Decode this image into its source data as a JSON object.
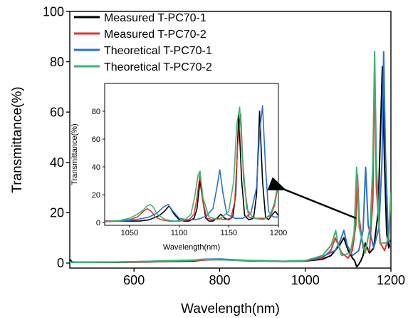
{
  "chart_data": [
    {
      "type": "line",
      "panel": "main",
      "xlabel": "Wavelength(nm)",
      "ylabel": "Transmittance(%)",
      "xlim": [
        450,
        1200
      ],
      "ylim": [
        -2,
        100
      ],
      "x_ticks": [
        600,
        800,
        1000,
        1200
      ],
      "y_ticks": [
        0,
        20,
        40,
        60,
        80,
        100
      ],
      "legend_position": "top-left",
      "colors": {
        "Measured T-PC70-1": "#000000",
        "Measured T-PC70-2": "#e8312a",
        "Theoretical T-PC70-1": "#2a6fd4",
        "Theoretical T-PC70-2": "#3cb371"
      },
      "series": [
        {
          "name": "Measured T-PC70-1",
          "x": [
            450,
            455,
            460,
            500,
            560,
            620,
            680,
            740,
            760,
            800,
            860,
            900,
            950,
            1000,
            1040,
            1060,
            1080,
            1090,
            1100,
            1110,
            1115,
            1120,
            1125,
            1130,
            1135,
            1140,
            1150,
            1160,
            1170,
            1180,
            1185,
            1190,
            1195,
            1200
          ],
          "y": [
            1.5,
            0.5,
            0.3,
            0.3,
            0.3,
            0.4,
            0.6,
            0.8,
            1.2,
            1.5,
            0.9,
            0.8,
            0.6,
            0.8,
            1.5,
            3,
            7,
            10,
            5,
            2,
            1,
            -1.5,
            -0.5,
            1,
            3,
            8,
            4,
            6,
            20,
            78,
            40,
            12,
            6,
            9
          ]
        },
        {
          "name": "Measured T-PC70-2",
          "x": [
            450,
            460,
            500,
            560,
            620,
            680,
            740,
            760,
            800,
            860,
            900,
            950,
            1000,
            1040,
            1060,
            1070,
            1075,
            1085,
            1100,
            1110,
            1118,
            1122,
            1126,
            1135,
            1150,
            1158,
            1162,
            1166,
            1175,
            1185,
            1195,
            1200
          ],
          "y": [
            0.5,
            0.3,
            0.3,
            0.4,
            0.5,
            0.7,
            1.0,
            1.2,
            1.4,
            1.0,
            0.9,
            0.7,
            0.9,
            2,
            5,
            10,
            8,
            4,
            2,
            5,
            15,
            35,
            18,
            6,
            5,
            25,
            78,
            30,
            8,
            5,
            10,
            28
          ]
        },
        {
          "name": "Theoretical T-PC70-1",
          "x": [
            450,
            460,
            500,
            560,
            620,
            680,
            740,
            760,
            800,
            860,
            900,
            950,
            1000,
            1040,
            1070,
            1082,
            1090,
            1098,
            1110,
            1125,
            1135,
            1141,
            1147,
            1160,
            1172,
            1179,
            1183,
            1187,
            1194,
            1200
          ],
          "y": [
            0.3,
            0.3,
            0.3,
            0.4,
            0.6,
            0.9,
            1.2,
            1.5,
            1.6,
            1.1,
            0.9,
            0.7,
            1.0,
            2.5,
            5,
            9,
            13,
            7,
            3,
            5,
            13,
            38,
            15,
            6,
            14,
            40,
            84,
            45,
            10,
            7
          ]
        },
        {
          "name": "Theoretical T-PC70-2",
          "x": [
            450,
            460,
            500,
            560,
            620,
            680,
            740,
            760,
            800,
            860,
            900,
            950,
            1000,
            1040,
            1060,
            1066,
            1071,
            1076,
            1085,
            1105,
            1114,
            1120,
            1126,
            1140,
            1152,
            1158,
            1162,
            1166,
            1174,
            1190,
            1196,
            1200
          ],
          "y": [
            0.3,
            0.3,
            0.3,
            0.4,
            0.6,
            0.9,
            1.2,
            1.4,
            1.3,
            1.0,
            0.9,
            0.7,
            1.0,
            3,
            7,
            10,
            13,
            8,
            3,
            4,
            12,
            38,
            14,
            4,
            15,
            40,
            84,
            40,
            8,
            8,
            12,
            28
          ]
        }
      ]
    },
    {
      "type": "line",
      "panel": "inset",
      "xlabel": "Wavelength(nm)",
      "ylabel": "Transmittance(%)",
      "xlim": [
        1025,
        1200
      ],
      "ylim": [
        -2,
        100
      ],
      "x_ticks": [
        1050,
        1100,
        1150,
        1200
      ],
      "y_ticks": [
        0,
        20,
        40,
        60,
        80
      ],
      "colors": {
        "Measured T-PC70-1": "#000000",
        "Measured T-PC70-2": "#e8312a",
        "Theoretical T-PC70-1": "#2a6fd4",
        "Theoretical T-PC70-2": "#3cb371"
      },
      "series": [
        {
          "name": "Measured T-PC70-1",
          "x": [
            1025,
            1040,
            1050,
            1060,
            1070,
            1080,
            1085,
            1090,
            1095,
            1100,
            1105,
            1110,
            1115,
            1118,
            1121,
            1124,
            1127,
            1130,
            1134,
            1138,
            1142,
            1146,
            1150,
            1154,
            1157,
            1160,
            1163,
            1166,
            1170,
            1175,
            1178,
            1181,
            1184,
            1187,
            1190,
            1194,
            1197,
            1200
          ],
          "y": [
            1,
            1,
            1,
            1,
            2,
            5,
            8,
            12,
            6,
            2,
            1,
            1,
            3,
            10,
            30,
            15,
            3,
            1,
            1,
            3,
            6,
            3,
            2,
            4,
            20,
            78,
            30,
            5,
            2,
            3,
            20,
            80,
            30,
            4,
            2,
            6,
            8,
            5
          ]
        },
        {
          "name": "Measured T-PC70-2",
          "x": [
            1025,
            1040,
            1050,
            1058,
            1064,
            1068,
            1072,
            1076,
            1082,
            1090,
            1100,
            1110,
            1115,
            1118,
            1121,
            1124,
            1128,
            1134,
            1140,
            1146,
            1152,
            1156,
            1159,
            1162,
            1165,
            1170,
            1178,
            1186,
            1192,
            1196,
            1200
          ],
          "y": [
            1,
            1,
            2,
            4,
            8,
            10,
            8,
            4,
            2,
            1,
            1,
            2,
            6,
            18,
            35,
            15,
            3,
            2,
            3,
            2,
            3,
            15,
            55,
            78,
            30,
            4,
            3,
            3,
            5,
            12,
            28
          ]
        },
        {
          "name": "Theoretical T-PC70-1",
          "x": [
            1025,
            1040,
            1050,
            1060,
            1070,
            1078,
            1084,
            1089,
            1094,
            1100,
            1108,
            1116,
            1122,
            1128,
            1134,
            1138,
            1141,
            1144,
            1148,
            1156,
            1164,
            1172,
            1178,
            1181,
            1184,
            1187,
            1190,
            1195,
            1200
          ],
          "y": [
            0.5,
            1,
            1.5,
            2.5,
            4,
            7,
            11,
            13,
            8,
            3,
            2,
            2,
            3,
            5,
            10,
            25,
            38,
            22,
            6,
            3,
            3,
            6,
            25,
            65,
            84,
            40,
            8,
            4,
            4
          ]
        },
        {
          "name": "Theoretical T-PC70-2",
          "x": [
            1025,
            1040,
            1050,
            1058,
            1064,
            1068,
            1071,
            1074,
            1078,
            1086,
            1096,
            1106,
            1112,
            1116,
            1119,
            1121,
            1124,
            1130,
            1140,
            1150,
            1155,
            1158,
            1161,
            1164,
            1168,
            1175,
            1185,
            1192,
            1196,
            1200
          ],
          "y": [
            0.5,
            1.5,
            3,
            6,
            9,
            12,
            13,
            11,
            6,
            2,
            1,
            2,
            6,
            20,
            34,
            37,
            18,
            4,
            2,
            8,
            30,
            70,
            83,
            45,
            10,
            3,
            2,
            6,
            14,
            30
          ]
        }
      ]
    }
  ]
}
